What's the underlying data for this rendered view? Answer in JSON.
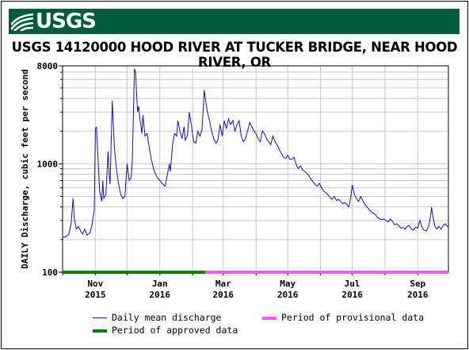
{
  "header": {
    "logo_text": "USGS",
    "banner_color": "#005a3c"
  },
  "chart_data": {
    "type": "line",
    "title": "USGS 14120000 HOOD RIVER AT TUCKER BRIDGE, NEAR HOOD RIVER, OR",
    "ylabel": "DAILY Discharge, cubic feet per second",
    "xlabel": "",
    "yscale": "log",
    "ylim": [
      100,
      8000
    ],
    "y_ticks": [
      "8000",
      "1000",
      "100"
    ],
    "y_tick_values": [
      8000,
      1000,
      100
    ],
    "xlim": [
      "2015-10-01",
      "2016-09-30"
    ],
    "x_ticks": [
      {
        "month": "Nov",
        "year": "2015",
        "date": "2015-11-01"
      },
      {
        "month": "Jan",
        "year": "2016",
        "date": "2016-01-01"
      },
      {
        "month": "Mar",
        "year": "2016",
        "date": "2016-03-01"
      },
      {
        "month": "May",
        "year": "2016",
        "date": "2016-05-01"
      },
      {
        "month": "Jul",
        "year": "2016",
        "date": "2016-07-01"
      },
      {
        "month": "Sep",
        "year": "2016",
        "date": "2016-09-01"
      }
    ],
    "grid": true,
    "legend_position": "bottom",
    "series": [
      {
        "name": "Daily mean discharge",
        "color": "#1010c0",
        "points": [
          [
            "2015-10-01",
            210
          ],
          [
            "2015-10-04",
            212
          ],
          [
            "2015-10-07",
            225
          ],
          [
            "2015-10-09",
            280
          ],
          [
            "2015-10-11",
            480
          ],
          [
            "2015-10-12",
            320
          ],
          [
            "2015-10-14",
            250
          ],
          [
            "2015-10-16",
            265
          ],
          [
            "2015-10-18",
            240
          ],
          [
            "2015-10-20",
            225
          ],
          [
            "2015-10-22",
            250
          ],
          [
            "2015-10-24",
            220
          ],
          [
            "2015-10-27",
            230
          ],
          [
            "2015-10-29",
            280
          ],
          [
            "2015-10-31",
            380
          ],
          [
            "2015-11-01",
            2100
          ],
          [
            "2015-11-02",
            2200
          ],
          [
            "2015-11-04",
            900
          ],
          [
            "2015-11-05",
            560
          ],
          [
            "2015-11-07",
            450
          ],
          [
            "2015-11-08",
            700
          ],
          [
            "2015-11-09",
            480
          ],
          [
            "2015-11-11",
            520
          ],
          [
            "2015-11-13",
            1300
          ],
          [
            "2015-11-14",
            800
          ],
          [
            "2015-11-15",
            650
          ],
          [
            "2015-11-17",
            3800
          ],
          [
            "2015-11-18",
            2400
          ],
          [
            "2015-11-19",
            1400
          ],
          [
            "2015-11-21",
            900
          ],
          [
            "2015-11-23",
            650
          ],
          [
            "2015-11-25",
            520
          ],
          [
            "2015-11-27",
            480
          ],
          [
            "2015-11-29",
            500
          ],
          [
            "2015-12-01",
            1000
          ],
          [
            "2015-12-03",
            700
          ],
          [
            "2015-12-05",
            750
          ],
          [
            "2015-12-06",
            1100
          ],
          [
            "2015-12-08",
            7500
          ],
          [
            "2015-12-09",
            7000
          ],
          [
            "2015-12-10",
            4500
          ],
          [
            "2015-12-11",
            3000
          ],
          [
            "2015-12-12",
            3400
          ],
          [
            "2015-12-13",
            2600
          ],
          [
            "2015-12-14",
            2300
          ],
          [
            "2015-12-15",
            1900
          ],
          [
            "2015-12-16",
            2800
          ],
          [
            "2015-12-18",
            1800
          ],
          [
            "2015-12-20",
            1900
          ],
          [
            "2015-12-22",
            1400
          ],
          [
            "2015-12-24",
            1100
          ],
          [
            "2015-12-26",
            900
          ],
          [
            "2015-12-28",
            800
          ],
          [
            "2015-12-30",
            740
          ],
          [
            "2016-01-01",
            700
          ],
          [
            "2016-01-04",
            650
          ],
          [
            "2016-01-06",
            620
          ],
          [
            "2016-01-08",
            780
          ],
          [
            "2016-01-10",
            1000
          ],
          [
            "2016-01-11",
            850
          ],
          [
            "2016-01-13",
            1500
          ],
          [
            "2016-01-15",
            1900
          ],
          [
            "2016-01-17",
            1800
          ],
          [
            "2016-01-18",
            2500
          ],
          [
            "2016-01-20",
            2000
          ],
          [
            "2016-01-22",
            1700
          ],
          [
            "2016-01-24",
            2200
          ],
          [
            "2016-01-25",
            1650
          ],
          [
            "2016-01-27",
            1800
          ],
          [
            "2016-01-29",
            3000
          ],
          [
            "2016-01-31",
            2200
          ],
          [
            "2016-02-02",
            1600
          ],
          [
            "2016-02-04",
            1550
          ],
          [
            "2016-02-06",
            2000
          ],
          [
            "2016-02-08",
            1800
          ],
          [
            "2016-02-10",
            2100
          ],
          [
            "2016-02-12",
            4800
          ],
          [
            "2016-02-13",
            4000
          ],
          [
            "2016-02-15",
            3000
          ],
          [
            "2016-02-17",
            2500
          ],
          [
            "2016-02-19",
            2000
          ],
          [
            "2016-02-21",
            1700
          ],
          [
            "2016-02-23",
            1550
          ],
          [
            "2016-02-25",
            1650
          ],
          [
            "2016-02-27",
            2300
          ],
          [
            "2016-02-29",
            1800
          ],
          [
            "2016-03-02",
            2500
          ],
          [
            "2016-03-04",
            2100
          ],
          [
            "2016-03-06",
            2600
          ],
          [
            "2016-03-08",
            2300
          ],
          [
            "2016-03-10",
            2500
          ],
          [
            "2016-03-12",
            2000
          ],
          [
            "2016-03-14",
            2300
          ],
          [
            "2016-03-16",
            2500
          ],
          [
            "2016-03-18",
            1800
          ],
          [
            "2016-03-20",
            1600
          ],
          [
            "2016-03-22",
            1700
          ],
          [
            "2016-03-24",
            2000
          ],
          [
            "2016-03-26",
            2400
          ],
          [
            "2016-03-28",
            2200
          ],
          [
            "2016-03-30",
            2000
          ],
          [
            "2016-04-01",
            1900
          ],
          [
            "2016-04-03",
            1700
          ],
          [
            "2016-04-05",
            1600
          ],
          [
            "2016-04-07",
            2000
          ],
          [
            "2016-04-09",
            1900
          ],
          [
            "2016-04-11",
            1700
          ],
          [
            "2016-04-13",
            1600
          ],
          [
            "2016-04-15",
            1500
          ],
          [
            "2016-04-17",
            1800
          ],
          [
            "2016-04-19",
            1600
          ],
          [
            "2016-04-21",
            1500
          ],
          [
            "2016-04-23",
            1350
          ],
          [
            "2016-04-25",
            1250
          ],
          [
            "2016-04-27",
            1150
          ],
          [
            "2016-04-29",
            1120
          ],
          [
            "2016-05-01",
            1200
          ],
          [
            "2016-05-03",
            1100
          ],
          [
            "2016-05-05",
            1100
          ],
          [
            "2016-05-07",
            1150
          ],
          [
            "2016-05-09",
            980
          ],
          [
            "2016-05-11",
            900
          ],
          [
            "2016-05-13",
            960
          ],
          [
            "2016-05-15",
            880
          ],
          [
            "2016-05-17",
            850
          ],
          [
            "2016-05-19",
            820
          ],
          [
            "2016-05-21",
            780
          ],
          [
            "2016-05-23",
            720
          ],
          [
            "2016-05-25",
            680
          ],
          [
            "2016-05-27",
            640
          ],
          [
            "2016-05-29",
            620
          ],
          [
            "2016-05-31",
            660
          ],
          [
            "2016-06-02",
            600
          ],
          [
            "2016-06-04",
            560
          ],
          [
            "2016-06-06",
            540
          ],
          [
            "2016-06-08",
            520
          ],
          [
            "2016-06-10",
            490
          ],
          [
            "2016-06-12",
            470
          ],
          [
            "2016-06-14",
            500
          ],
          [
            "2016-06-16",
            460
          ],
          [
            "2016-06-18",
            470
          ],
          [
            "2016-06-20",
            450
          ],
          [
            "2016-06-22",
            430
          ],
          [
            "2016-06-24",
            440
          ],
          [
            "2016-06-26",
            420
          ],
          [
            "2016-06-28",
            400
          ],
          [
            "2016-06-30",
            520
          ],
          [
            "2016-07-01",
            640
          ],
          [
            "2016-07-03",
            520
          ],
          [
            "2016-07-05",
            480
          ],
          [
            "2016-07-07",
            450
          ],
          [
            "2016-07-09",
            500
          ],
          [
            "2016-07-11",
            460
          ],
          [
            "2016-07-13",
            420
          ],
          [
            "2016-07-15",
            400
          ],
          [
            "2016-07-17",
            380
          ],
          [
            "2016-07-19",
            360
          ],
          [
            "2016-07-21",
            350
          ],
          [
            "2016-07-23",
            340
          ],
          [
            "2016-07-25",
            320
          ],
          [
            "2016-07-27",
            310
          ],
          [
            "2016-07-29",
            305
          ],
          [
            "2016-07-31",
            310
          ],
          [
            "2016-08-02",
            300
          ],
          [
            "2016-08-04",
            290
          ],
          [
            "2016-08-06",
            310
          ],
          [
            "2016-08-08",
            295
          ],
          [
            "2016-08-10",
            275
          ],
          [
            "2016-08-12",
            280
          ],
          [
            "2016-08-14",
            270
          ],
          [
            "2016-08-16",
            255
          ],
          [
            "2016-08-18",
            260
          ],
          [
            "2016-08-20",
            250
          ],
          [
            "2016-08-22",
            265
          ],
          [
            "2016-08-24",
            270
          ],
          [
            "2016-08-26",
            250
          ],
          [
            "2016-08-28",
            245
          ],
          [
            "2016-08-30",
            260
          ],
          [
            "2016-09-01",
            255
          ],
          [
            "2016-09-02",
            280
          ],
          [
            "2016-09-03",
            300
          ],
          [
            "2016-09-05",
            260
          ],
          [
            "2016-09-07",
            245
          ],
          [
            "2016-09-09",
            240
          ],
          [
            "2016-09-11",
            260
          ],
          [
            "2016-09-13",
            320
          ],
          [
            "2016-09-14",
            400
          ],
          [
            "2016-09-15",
            340
          ],
          [
            "2016-09-17",
            270
          ],
          [
            "2016-09-19",
            250
          ],
          [
            "2016-09-21",
            265
          ],
          [
            "2016-09-23",
            250
          ],
          [
            "2016-09-25",
            270
          ],
          [
            "2016-09-27",
            280
          ],
          [
            "2016-09-29",
            265
          ],
          [
            "2016-09-30",
            260
          ]
        ]
      }
    ],
    "approval_periods": [
      {
        "name": "Period of approved data",
        "color": "#008000",
        "start": "2015-10-01",
        "end": "2016-02-13"
      },
      {
        "name": "Period of provisional data",
        "color": "#ff55ff",
        "start": "2016-02-13",
        "end": "2016-09-30"
      }
    ]
  },
  "legend": {
    "items": [
      {
        "label": "Daily mean discharge",
        "color": "#1010c0"
      },
      {
        "label": "Period of provisional data",
        "color": "#ff55ff"
      },
      {
        "label": "Period of approved data",
        "color": "#008000"
      }
    ]
  }
}
